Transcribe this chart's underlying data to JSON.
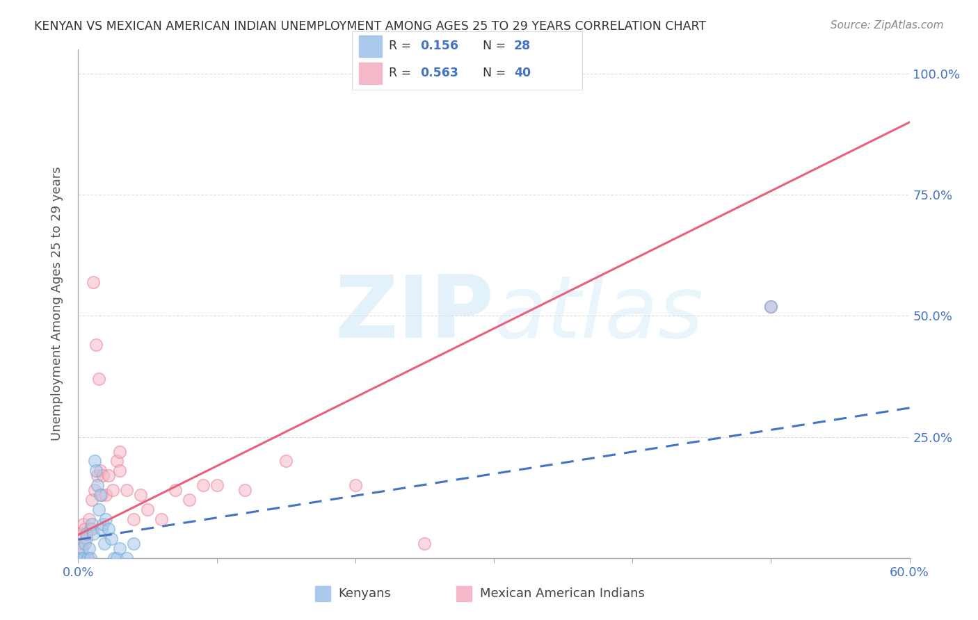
{
  "title": "KENYAN VS MEXICAN AMERICAN INDIAN UNEMPLOYMENT AMONG AGES 25 TO 29 YEARS CORRELATION CHART",
  "source": "Source: ZipAtlas.com",
  "ylabel": "Unemployment Among Ages 25 to 29 years",
  "xlim": [
    0.0,
    0.6
  ],
  "ylim": [
    0.0,
    1.05
  ],
  "xticks": [
    0.0,
    0.1,
    0.2,
    0.3,
    0.4,
    0.5,
    0.6
  ],
  "xticklabels": [
    "0.0%",
    "",
    "",
    "",
    "",
    "",
    "60.0%"
  ],
  "yticks": [
    0.0,
    0.25,
    0.5,
    0.75,
    1.0
  ],
  "yticklabels_right": [
    "",
    "25.0%",
    "50.0%",
    "75.0%",
    "100.0%"
  ],
  "kenyan_face_color": "#aac8eb",
  "kenyan_edge_color": "#6aaad4",
  "mexican_face_color": "#f5b8c8",
  "mexican_edge_color": "#e8809a",
  "kenyan_line_color": "#4472c4",
  "mexican_line_color": "#e8607a",
  "background_color": "#ffffff",
  "grid_color": "#cccccc",
  "title_color": "#333333",
  "tick_label_color": "#4472c4",
  "legend_box_kenyan": "#aac8eb",
  "legend_box_mexican": "#f5b8c8",
  "legend_text_color": "#333333",
  "legend_value_color": "#4472c4",
  "watermark_color": "#d0e8f8",
  "pink_line_x0": 0.0,
  "pink_line_y0": 0.048,
  "pink_line_x1": 0.6,
  "pink_line_y1": 0.9,
  "blue_line_x0": 0.0,
  "blue_line_y0": 0.038,
  "blue_line_x1": 0.6,
  "blue_line_y1": 0.31,
  "kenyan_x": [
    0.0,
    0.002,
    0.003,
    0.004,
    0.005,
    0.006,
    0.007,
    0.008,
    0.009,
    0.01,
    0.011,
    0.012,
    0.013,
    0.014,
    0.015,
    0.016,
    0.017,
    0.018,
    0.019,
    0.02,
    0.022,
    0.024,
    0.026,
    0.028,
    0.03,
    0.035,
    0.04,
    0.5
  ],
  "kenyan_y": [
    0.0,
    0.0,
    0.02,
    0.0,
    0.03,
    0.05,
    0.0,
    0.02,
    0.0,
    0.07,
    0.05,
    0.2,
    0.18,
    0.15,
    0.1,
    0.13,
    0.06,
    0.07,
    0.03,
    0.08,
    0.06,
    0.04,
    0.0,
    0.0,
    0.02,
    0.0,
    0.03,
    0.52
  ],
  "mexican_x": [
    0.0,
    0.001,
    0.002,
    0.003,
    0.004,
    0.005,
    0.006,
    0.007,
    0.008,
    0.009,
    0.01,
    0.011,
    0.012,
    0.013,
    0.014,
    0.015,
    0.016,
    0.017,
    0.018,
    0.02,
    0.022,
    0.025,
    0.028,
    0.03,
    0.035,
    0.04,
    0.045,
    0.05,
    0.06,
    0.07,
    0.08,
    0.09,
    0.1,
    0.12,
    0.15,
    0.2,
    0.25,
    0.03,
    0.01,
    0.5
  ],
  "mexican_y": [
    0.0,
    0.02,
    0.05,
    0.03,
    0.07,
    0.06,
    0.04,
    0.0,
    0.08,
    0.06,
    0.12,
    0.57,
    0.14,
    0.44,
    0.17,
    0.37,
    0.18,
    0.13,
    0.17,
    0.13,
    0.17,
    0.14,
    0.2,
    0.22,
    0.14,
    0.08,
    0.13,
    0.1,
    0.08,
    0.14,
    0.12,
    0.15,
    0.15,
    0.14,
    0.2,
    0.15,
    0.03,
    0.18,
    0.06,
    0.52
  ]
}
